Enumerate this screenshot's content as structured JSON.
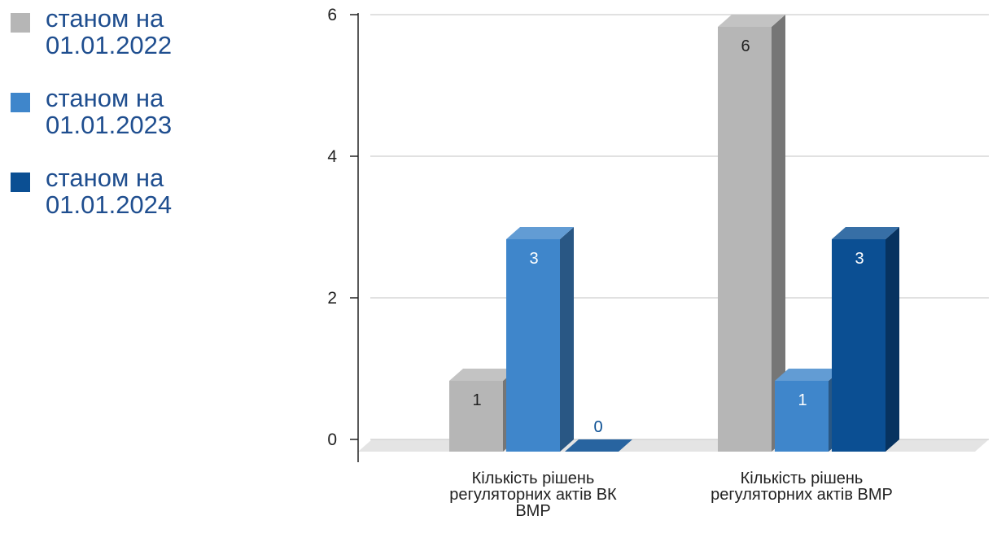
{
  "legend": {
    "items": [
      {
        "label_line1": "станом на",
        "label_line2": "01.01.2022",
        "color": "#b6b6b6"
      },
      {
        "label_line1": "станом на",
        "label_line2": "01.01.2023",
        "color": "#3f86cb"
      },
      {
        "label_line1": "станом на",
        "label_line2": "01.01.2024",
        "color": "#0b4f93"
      }
    ]
  },
  "chart_data": {
    "type": "bar",
    "style": "3d-column",
    "categories": [
      [
        "Кількість рішень",
        "регуляторних актів ВК",
        "ВМР"
      ],
      [
        "Кількість рішень",
        "регуляторних актів ВМР"
      ]
    ],
    "series": [
      {
        "name": "станом на 01.01.2022",
        "color": "#b6b6b6",
        "values": [
          1,
          6
        ]
      },
      {
        "name": "станом на 01.01.2023",
        "color": "#3f86cb",
        "values": [
          3,
          1
        ]
      },
      {
        "name": "станом на 01.01.2024",
        "color": "#0b4f93",
        "values": [
          0,
          3
        ]
      }
    ],
    "yticks": [
      "0",
      "2",
      "4",
      "6"
    ],
    "ylim": [
      0,
      6
    ],
    "grid": true,
    "legend_position": "left"
  }
}
